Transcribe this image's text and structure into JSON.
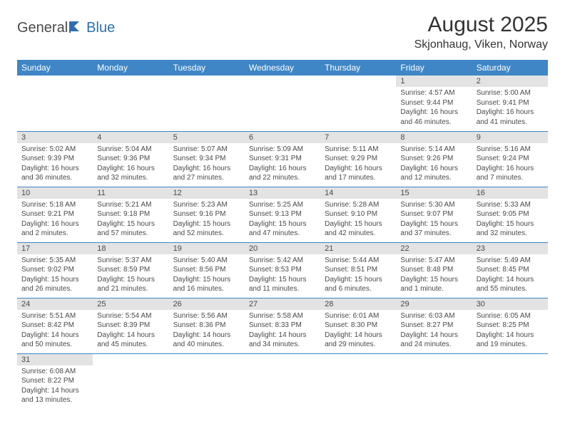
{
  "logo": {
    "text1": "General",
    "text2": "Blue"
  },
  "title": "August 2025",
  "subtitle": "Skjonhaug, Viken, Norway",
  "colors": {
    "header_bg": "#3f86c7",
    "header_text": "#ffffff",
    "daynum_bg": "#e3e3e3",
    "text": "#4a4a4a",
    "border": "#3f86c7",
    "logo_blue": "#2f6fb0",
    "page_bg": "#ffffff"
  },
  "layout": {
    "columns": 7,
    "col_headers_fontsize": 12,
    "title_fontsize": 30,
    "subtitle_fontsize": 16,
    "cell_fontsize": 10
  },
  "weekdays": [
    "Sunday",
    "Monday",
    "Tuesday",
    "Wednesday",
    "Thursday",
    "Friday",
    "Saturday"
  ],
  "weeks": [
    [
      null,
      null,
      null,
      null,
      null,
      {
        "n": "1",
        "sunrise": "4:57 AM",
        "sunset": "9:44 PM",
        "daylight": "16 hours and 46 minutes."
      },
      {
        "n": "2",
        "sunrise": "5:00 AM",
        "sunset": "9:41 PM",
        "daylight": "16 hours and 41 minutes."
      }
    ],
    [
      {
        "n": "3",
        "sunrise": "5:02 AM",
        "sunset": "9:39 PM",
        "daylight": "16 hours and 36 minutes."
      },
      {
        "n": "4",
        "sunrise": "5:04 AM",
        "sunset": "9:36 PM",
        "daylight": "16 hours and 32 minutes."
      },
      {
        "n": "5",
        "sunrise": "5:07 AM",
        "sunset": "9:34 PM",
        "daylight": "16 hours and 27 minutes."
      },
      {
        "n": "6",
        "sunrise": "5:09 AM",
        "sunset": "9:31 PM",
        "daylight": "16 hours and 22 minutes."
      },
      {
        "n": "7",
        "sunrise": "5:11 AM",
        "sunset": "9:29 PM",
        "daylight": "16 hours and 17 minutes."
      },
      {
        "n": "8",
        "sunrise": "5:14 AM",
        "sunset": "9:26 PM",
        "daylight": "16 hours and 12 minutes."
      },
      {
        "n": "9",
        "sunrise": "5:16 AM",
        "sunset": "9:24 PM",
        "daylight": "16 hours and 7 minutes."
      }
    ],
    [
      {
        "n": "10",
        "sunrise": "5:18 AM",
        "sunset": "9:21 PM",
        "daylight": "16 hours and 2 minutes."
      },
      {
        "n": "11",
        "sunrise": "5:21 AM",
        "sunset": "9:18 PM",
        "daylight": "15 hours and 57 minutes."
      },
      {
        "n": "12",
        "sunrise": "5:23 AM",
        "sunset": "9:16 PM",
        "daylight": "15 hours and 52 minutes."
      },
      {
        "n": "13",
        "sunrise": "5:25 AM",
        "sunset": "9:13 PM",
        "daylight": "15 hours and 47 minutes."
      },
      {
        "n": "14",
        "sunrise": "5:28 AM",
        "sunset": "9:10 PM",
        "daylight": "15 hours and 42 minutes."
      },
      {
        "n": "15",
        "sunrise": "5:30 AM",
        "sunset": "9:07 PM",
        "daylight": "15 hours and 37 minutes."
      },
      {
        "n": "16",
        "sunrise": "5:33 AM",
        "sunset": "9:05 PM",
        "daylight": "15 hours and 32 minutes."
      }
    ],
    [
      {
        "n": "17",
        "sunrise": "5:35 AM",
        "sunset": "9:02 PM",
        "daylight": "15 hours and 26 minutes."
      },
      {
        "n": "18",
        "sunrise": "5:37 AM",
        "sunset": "8:59 PM",
        "daylight": "15 hours and 21 minutes."
      },
      {
        "n": "19",
        "sunrise": "5:40 AM",
        "sunset": "8:56 PM",
        "daylight": "15 hours and 16 minutes."
      },
      {
        "n": "20",
        "sunrise": "5:42 AM",
        "sunset": "8:53 PM",
        "daylight": "15 hours and 11 minutes."
      },
      {
        "n": "21",
        "sunrise": "5:44 AM",
        "sunset": "8:51 PM",
        "daylight": "15 hours and 6 minutes."
      },
      {
        "n": "22",
        "sunrise": "5:47 AM",
        "sunset": "8:48 PM",
        "daylight": "15 hours and 1 minute."
      },
      {
        "n": "23",
        "sunrise": "5:49 AM",
        "sunset": "8:45 PM",
        "daylight": "14 hours and 55 minutes."
      }
    ],
    [
      {
        "n": "24",
        "sunrise": "5:51 AM",
        "sunset": "8:42 PM",
        "daylight": "14 hours and 50 minutes."
      },
      {
        "n": "25",
        "sunrise": "5:54 AM",
        "sunset": "8:39 PM",
        "daylight": "14 hours and 45 minutes."
      },
      {
        "n": "26",
        "sunrise": "5:56 AM",
        "sunset": "8:36 PM",
        "daylight": "14 hours and 40 minutes."
      },
      {
        "n": "27",
        "sunrise": "5:58 AM",
        "sunset": "8:33 PM",
        "daylight": "14 hours and 34 minutes."
      },
      {
        "n": "28",
        "sunrise": "6:01 AM",
        "sunset": "8:30 PM",
        "daylight": "14 hours and 29 minutes."
      },
      {
        "n": "29",
        "sunrise": "6:03 AM",
        "sunset": "8:27 PM",
        "daylight": "14 hours and 24 minutes."
      },
      {
        "n": "30",
        "sunrise": "6:05 AM",
        "sunset": "8:25 PM",
        "daylight": "14 hours and 19 minutes."
      }
    ],
    [
      {
        "n": "31",
        "sunrise": "6:08 AM",
        "sunset": "8:22 PM",
        "daylight": "14 hours and 13 minutes."
      },
      null,
      null,
      null,
      null,
      null,
      null
    ]
  ],
  "labels": {
    "sunrise": "Sunrise: ",
    "sunset": "Sunset: ",
    "daylight": "Daylight: "
  }
}
